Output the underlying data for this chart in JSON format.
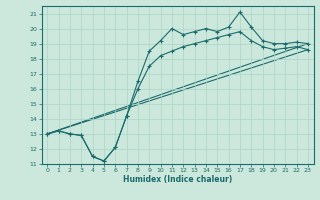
{
  "xlabel": "Humidex (Indice chaleur)",
  "bg_color": "#cce8dd",
  "line_color": "#1a6b6b",
  "grid_color": "#aad4c4",
  "xlim": [
    -0.5,
    23.5
  ],
  "ylim": [
    11,
    21.5
  ],
  "yticks": [
    11,
    12,
    13,
    14,
    15,
    16,
    17,
    18,
    19,
    20,
    21
  ],
  "xticks": [
    0,
    1,
    2,
    3,
    4,
    5,
    6,
    7,
    8,
    9,
    10,
    11,
    12,
    13,
    14,
    15,
    16,
    17,
    18,
    19,
    20,
    21,
    22,
    23
  ],
  "curve1_x": [
    0,
    1,
    2,
    3,
    4,
    5,
    6,
    7,
    8,
    9,
    10,
    11,
    12,
    13,
    14,
    15,
    16,
    17,
    18,
    19,
    20,
    21,
    22,
    23
  ],
  "curve1_y": [
    13.0,
    13.2,
    13.0,
    12.9,
    11.5,
    11.2,
    12.1,
    14.2,
    16.5,
    18.5,
    19.2,
    20.0,
    19.6,
    19.8,
    20.0,
    19.8,
    20.1,
    21.1,
    20.1,
    19.2,
    19.0,
    19.0,
    19.1,
    19.0
  ],
  "curve2_x": [
    0,
    1,
    2,
    3,
    4,
    5,
    6,
    7,
    8,
    9,
    10,
    11,
    12,
    13,
    14,
    15,
    16,
    17,
    18,
    19,
    20,
    21,
    22,
    23
  ],
  "curve2_y": [
    13.0,
    13.2,
    13.0,
    12.9,
    11.5,
    11.2,
    12.1,
    14.2,
    16.0,
    17.5,
    18.2,
    18.5,
    18.8,
    19.0,
    19.2,
    19.4,
    19.6,
    19.8,
    19.2,
    18.8,
    18.6,
    18.7,
    18.8,
    18.6
  ],
  "line1_x": [
    0,
    23
  ],
  "line1_y": [
    13.0,
    18.6
  ],
  "line2_x": [
    0,
    23
  ],
  "line2_y": [
    13.0,
    19.0
  ],
  "marker": "+"
}
